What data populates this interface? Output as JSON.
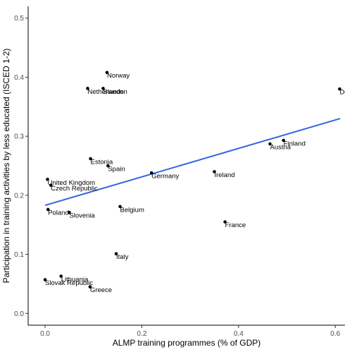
{
  "chart_data": {
    "type": "scatter",
    "xlabel": "ALMP training programmes (% of GDP)",
    "ylabel": "Participation in training activities by less educated (ISCED 1-2)",
    "xlim": [
      -0.035,
      0.62
    ],
    "ylim": [
      -0.02,
      0.52
    ],
    "xticks": [
      0.0,
      0.2,
      0.4,
      0.6
    ],
    "xtick_labels": [
      "0.0",
      "0.2",
      "0.4",
      "0.6"
    ],
    "yticks": [
      0.0,
      0.1,
      0.2,
      0.3,
      0.4,
      0.5
    ],
    "ytick_labels": [
      "0.0",
      "0.1",
      "0.2",
      "0.3",
      "0.4",
      "0.5"
    ],
    "grid": false,
    "points": [
      {
        "label": "Norway",
        "x": 0.128,
        "y": 0.408
      },
      {
        "label": "Netherlands",
        "x": 0.088,
        "y": 0.381
      },
      {
        "label": "Sweden",
        "x": 0.12,
        "y": 0.381
      },
      {
        "label": "Denmark",
        "x": 0.609,
        "y": 0.38
      },
      {
        "label": "Finland",
        "x": 0.493,
        "y": 0.293
      },
      {
        "label": "Austria",
        "x": 0.465,
        "y": 0.287
      },
      {
        "label": "Estonia",
        "x": 0.094,
        "y": 0.262
      },
      {
        "label": "Spain",
        "x": 0.13,
        "y": 0.25
      },
      {
        "label": "Germany",
        "x": 0.22,
        "y": 0.238
      },
      {
        "label": "Ireland",
        "x": 0.35,
        "y": 0.24
      },
      {
        "label": "United Kingdom",
        "x": 0.005,
        "y": 0.227
      },
      {
        "label": "Czech Republic",
        "x": 0.012,
        "y": 0.217
      },
      {
        "label": "Belgium",
        "x": 0.155,
        "y": 0.181
      },
      {
        "label": "Poland",
        "x": 0.006,
        "y": 0.176
      },
      {
        "label": "Slovenia",
        "x": 0.05,
        "y": 0.171
      },
      {
        "label": "France",
        "x": 0.372,
        "y": 0.155
      },
      {
        "label": "Italy",
        "x": 0.147,
        "y": 0.101
      },
      {
        "label": "Lithuania",
        "x": 0.033,
        "y": 0.063
      },
      {
        "label": "Slovak Republic",
        "x": 0.0,
        "y": 0.057
      },
      {
        "label": "Greece",
        "x": 0.093,
        "y": 0.045
      }
    ],
    "fit_line": {
      "x": [
        0.0,
        0.61
      ],
      "y": [
        0.183,
        0.33
      ],
      "color": "#3366e0"
    }
  }
}
